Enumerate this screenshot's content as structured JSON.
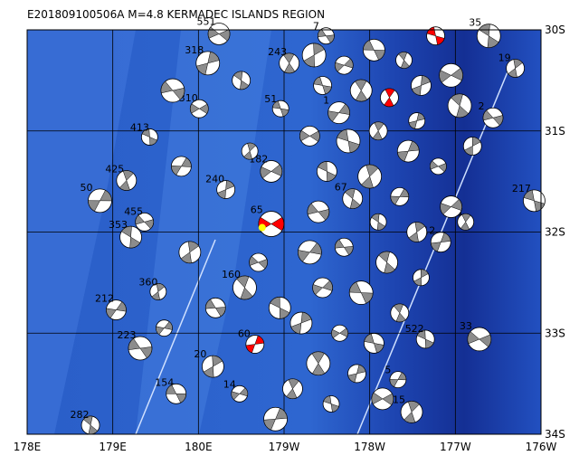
{
  "map": {
    "title": "E201809100506A  M=4.8  KERMADEC ISLANDS REGION",
    "xlim": [
      178,
      184
    ],
    "ylim": [
      -30,
      -34
    ],
    "xticks": [
      {
        "value": 178,
        "label": "178E"
      },
      {
        "value": 179,
        "label": "179E"
      },
      {
        "value": 180,
        "label": "180E"
      },
      {
        "value": 181,
        "label": "179W"
      },
      {
        "value": 182,
        "label": "178W"
      },
      {
        "value": 183,
        "label": "177W"
      },
      {
        "value": 184,
        "label": "176W"
      }
    ],
    "yticks": [
      {
        "value": -30,
        "label": "30S"
      },
      {
        "value": -31,
        "label": "31S"
      },
      {
        "value": -32,
        "label": "32S"
      },
      {
        "value": -33,
        "label": "33S"
      },
      {
        "value": -34,
        "label": "34S"
      }
    ],
    "events": [
      {
        "lon": 180.85,
        "lat": -31.92,
        "label": "65",
        "color": "red"
      },
      {
        "lon": 182.77,
        "lat": -30.06,
        "color": "red"
      },
      {
        "lon": 182.23,
        "lat": -30.67,
        "color": "red"
      },
      {
        "lon": 180.66,
        "lat": -33.11,
        "label": "60",
        "color": "red"
      },
      {
        "lon": 180.24,
        "lat": -30.04,
        "label": "551"
      },
      {
        "lon": 179.43,
        "lat": -31.06,
        "label": "413"
      },
      {
        "lon": 179.16,
        "lat": -31.49,
        "label": "425"
      },
      {
        "lon": 178.85,
        "lat": -31.69,
        "label": "50"
      },
      {
        "lon": 179.37,
        "lat": -31.9,
        "label": "455"
      },
      {
        "lon": 179.21,
        "lat": -32.05,
        "label": "353"
      },
      {
        "lon": 179.53,
        "lat": -32.59,
        "label": "360"
      },
      {
        "lon": 179.04,
        "lat": -32.77,
        "label": "212"
      },
      {
        "lon": 179.32,
        "lat": -33.15,
        "label": "223"
      },
      {
        "lon": 178.74,
        "lat": -33.91,
        "label": "282"
      },
      {
        "lon": 180.17,
        "lat": -33.33,
        "label": "20"
      },
      {
        "lon": 180.48,
        "lat": -33.6,
        "label": "14"
      },
      {
        "lon": 179.74,
        "lat": -33.6,
        "label": "154"
      },
      {
        "lon": 180.54,
        "lat": -32.55,
        "label": "160"
      },
      {
        "lon": 180.32,
        "lat": -31.58,
        "label": "240"
      },
      {
        "lon": 180.85,
        "lat": -31.4,
        "label": "182"
      },
      {
        "lon": 180.96,
        "lat": -30.78,
        "label": "51"
      },
      {
        "lon": 181.06,
        "lat": -30.33,
        "label": "243"
      },
      {
        "lon": 180.11,
        "lat": -30.33,
        "label": "318"
      },
      {
        "lon": 180.01,
        "lat": -30.78,
        "label": "310"
      },
      {
        "lon": 183.92,
        "lat": -31.69,
        "label": "217"
      },
      {
        "lon": 183.12,
        "lat": -31.9,
        "label": "26"
      },
      {
        "lon": 182.83,
        "lat": -32.1,
        "label": "12"
      },
      {
        "lon": 183.28,
        "lat": -33.06,
        "label": "33"
      },
      {
        "lon": 182.65,
        "lat": -33.06,
        "label": "522"
      },
      {
        "lon": 182.49,
        "lat": -33.78,
        "label": "15"
      },
      {
        "lon": 182.33,
        "lat": -33.46,
        "label": "5"
      },
      {
        "lon": 183.44,
        "lat": -30.87,
        "label": "2"
      },
      {
        "lon": 183.39,
        "lat": -30.06,
        "label": "35"
      },
      {
        "lon": 183.7,
        "lat": -30.38,
        "label": "19"
      },
      {
        "lon": 181.64,
        "lat": -30.82,
        "label": "1"
      },
      {
        "lon": 181.49,
        "lat": -30.06,
        "label": "7"
      },
      {
        "lon": 181.8,
        "lat": -31.67,
        "label": "67"
      },
      {
        "lon": 181.35,
        "lat": -30.25
      },
      {
        "lon": 181.7,
        "lat": -30.35
      },
      {
        "lon": 182.05,
        "lat": -30.2
      },
      {
        "lon": 182.4,
        "lat": -30.3
      },
      {
        "lon": 182.6,
        "lat": -30.55
      },
      {
        "lon": 182.95,
        "lat": -30.45
      },
      {
        "lon": 181.45,
        "lat": -30.55
      },
      {
        "lon": 181.9,
        "lat": -30.6
      },
      {
        "lon": 182.55,
        "lat": -30.9
      },
      {
        "lon": 181.3,
        "lat": -31.05
      },
      {
        "lon": 181.75,
        "lat": -31.1
      },
      {
        "lon": 182.1,
        "lat": -31.0
      },
      {
        "lon": 182.45,
        "lat": -31.2
      },
      {
        "lon": 182.8,
        "lat": -31.35
      },
      {
        "lon": 181.5,
        "lat": -31.4
      },
      {
        "lon": 182.0,
        "lat": -31.45
      },
      {
        "lon": 182.35,
        "lat": -31.65
      },
      {
        "lon": 181.4,
        "lat": -31.8
      },
      {
        "lon": 182.1,
        "lat": -31.9
      },
      {
        "lon": 182.55,
        "lat": -32.0
      },
      {
        "lon": 181.3,
        "lat": -32.2
      },
      {
        "lon": 181.7,
        "lat": -32.15
      },
      {
        "lon": 182.2,
        "lat": -32.3
      },
      {
        "lon": 182.6,
        "lat": -32.45
      },
      {
        "lon": 181.45,
        "lat": -32.55
      },
      {
        "lon": 181.9,
        "lat": -32.6
      },
      {
        "lon": 182.35,
        "lat": -32.8
      },
      {
        "lon": 181.2,
        "lat": -32.9
      },
      {
        "lon": 181.65,
        "lat": -33.0
      },
      {
        "lon": 182.05,
        "lat": -33.1
      },
      {
        "lon": 181.4,
        "lat": -33.3
      },
      {
        "lon": 181.85,
        "lat": -33.4
      },
      {
        "lon": 182.15,
        "lat": -33.65
      },
      {
        "lon": 181.55,
        "lat": -33.7
      },
      {
        "lon": 181.1,
        "lat": -33.55
      },
      {
        "lon": 180.9,
        "lat": -33.85
      },
      {
        "lon": 180.7,
        "lat": -32.3
      },
      {
        "lon": 180.95,
        "lat": -32.75
      },
      {
        "lon": 180.6,
        "lat": -31.2
      },
      {
        "lon": 179.8,
        "lat": -31.35
      },
      {
        "lon": 179.7,
        "lat": -30.6
      },
      {
        "lon": 180.5,
        "lat": -30.5
      },
      {
        "lon": 179.9,
        "lat": -32.2
      },
      {
        "lon": 179.6,
        "lat": -32.95
      },
      {
        "lon": 180.2,
        "lat": -32.75
      },
      {
        "lon": 183.05,
        "lat": -30.75
      },
      {
        "lon": 183.2,
        "lat": -31.15
      },
      {
        "lon": 182.95,
        "lat": -31.75
      }
    ]
  }
}
